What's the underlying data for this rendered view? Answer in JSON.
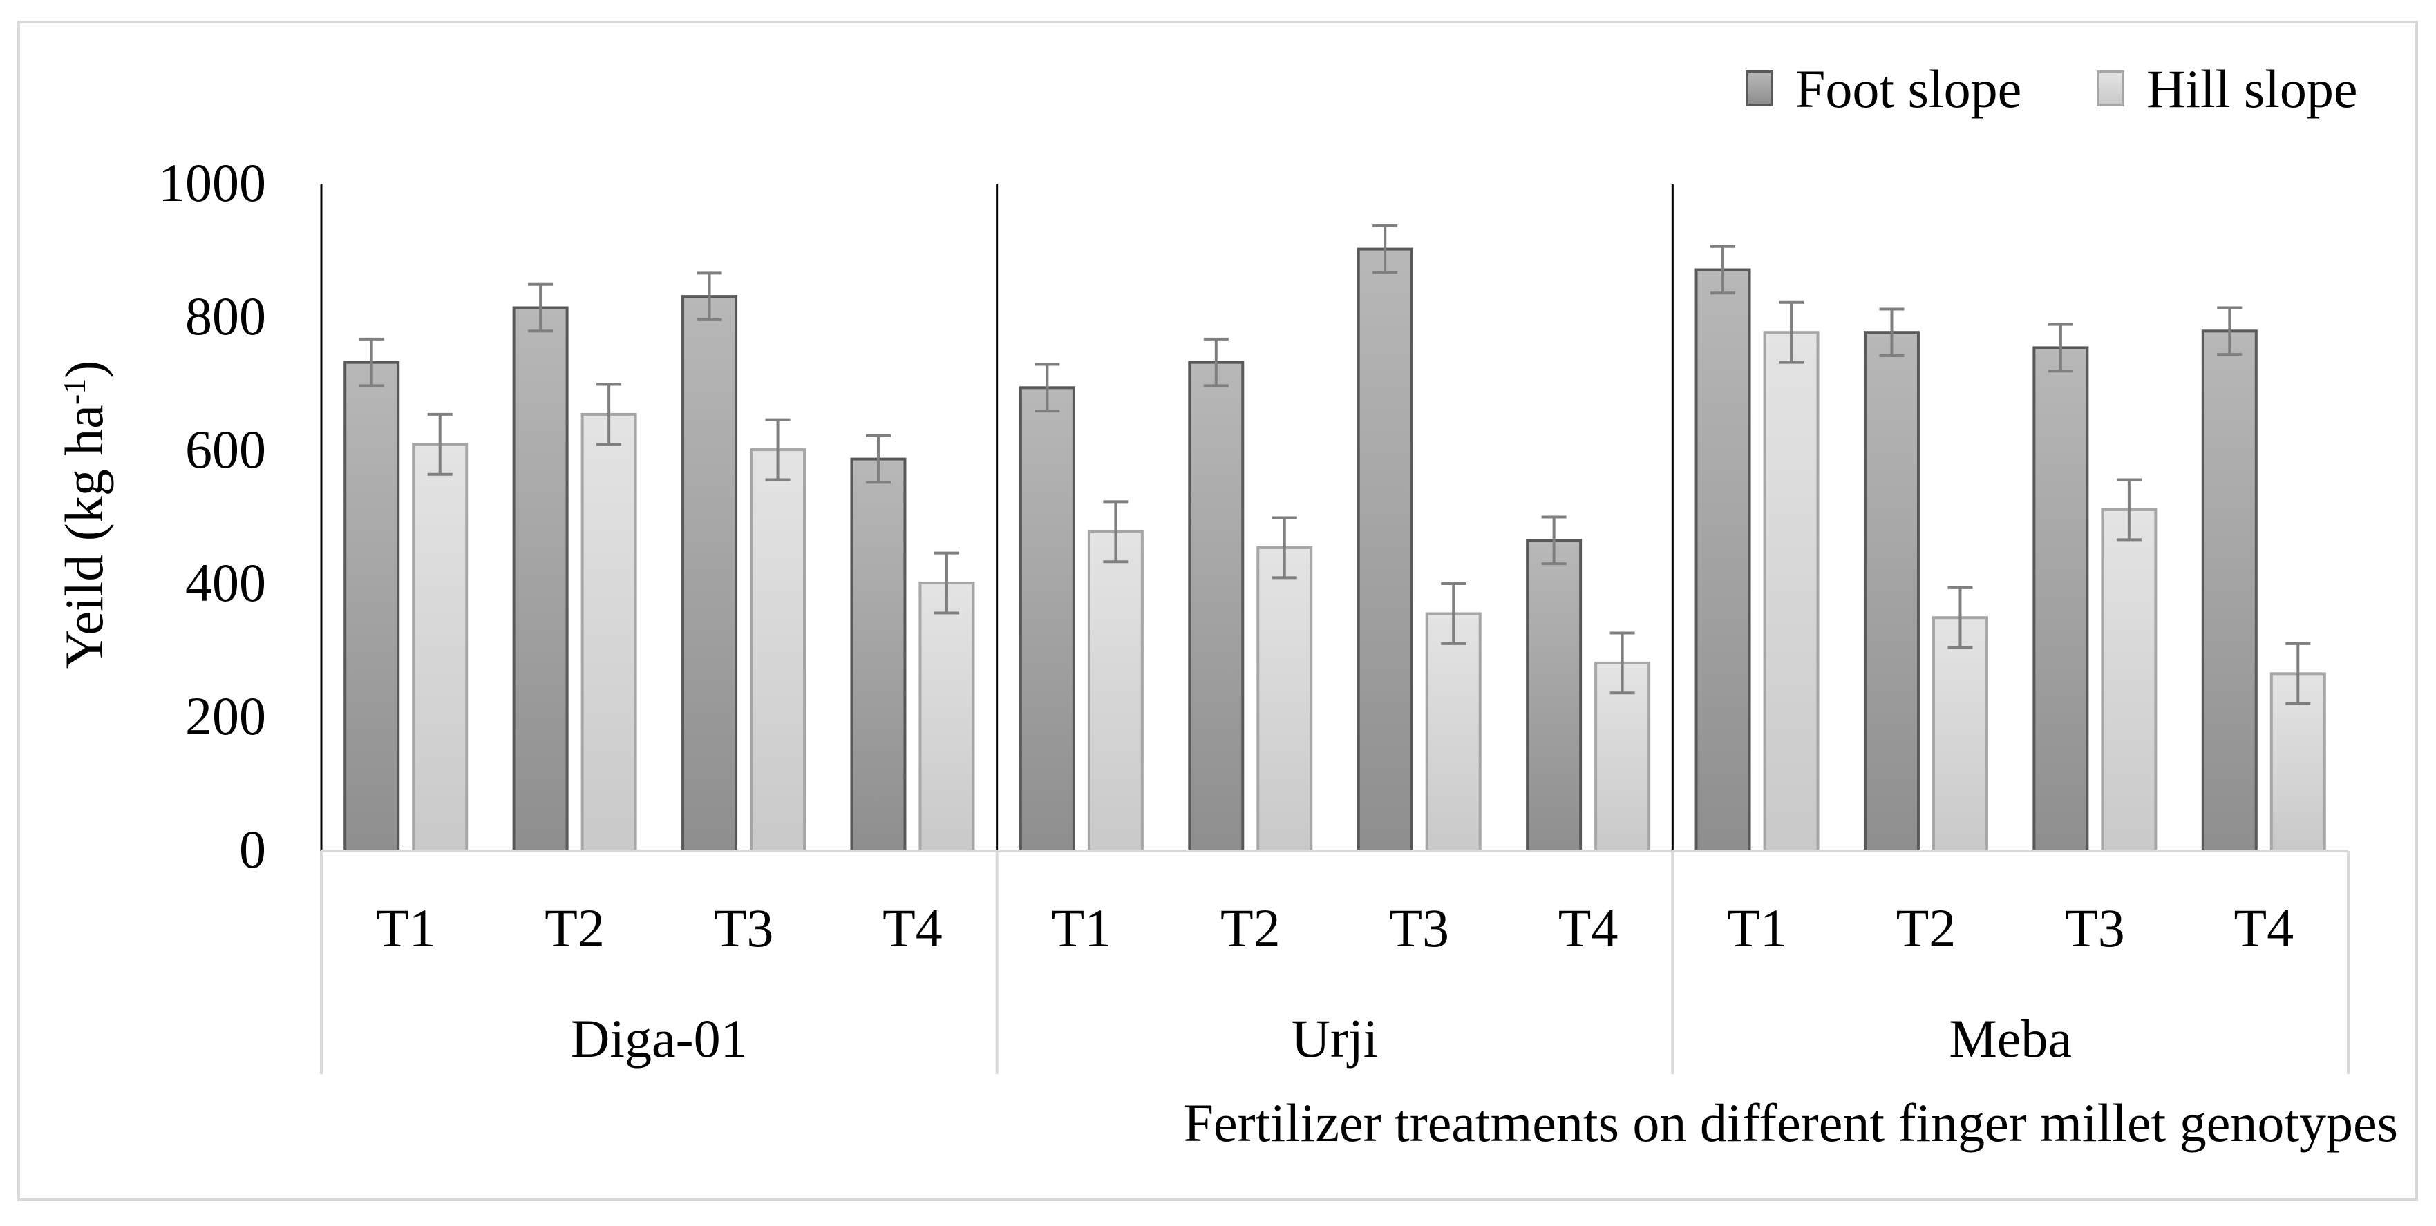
{
  "chart_data": {
    "type": "bar",
    "title": "",
    "ylabel_main": "Yeild (kg ha",
    "ylabel_sup": "-1",
    "ylabel_close": ")",
    "xlabel": "Fertilizer treatments on different finger millet genotypes",
    "ylim": [
      0,
      1000
    ],
    "yticks": [
      0,
      200,
      400,
      600,
      800,
      1000
    ],
    "ytick_labels": [
      "0",
      "200",
      "400",
      "600",
      "800",
      "1000"
    ],
    "grid": false,
    "legend_position": "top-right",
    "groups": [
      {
        "name": "Diga-01",
        "categories": [
          "T1",
          "T2",
          "T3",
          "T4"
        ]
      },
      {
        "name": "Urji",
        "categories": [
          "T1",
          "T2",
          "T3",
          "T4"
        ]
      },
      {
        "name": "Meba",
        "categories": [
          "T1",
          "T2",
          "T3",
          "T4"
        ]
      }
    ],
    "series": [
      {
        "name": "Foot slope",
        "color_top": "#b8b8b8",
        "color_bottom": "#8e8e8e",
        "stroke": "#595959",
        "values": [
          733,
          815,
          832,
          588,
          695,
          733,
          903,
          466,
          872,
          778,
          755,
          780
        ],
        "errors": [
          35,
          35,
          35,
          35,
          35,
          35,
          35,
          35,
          35,
          35,
          35,
          35
        ]
      },
      {
        "name": "Hill slope",
        "color_top": "#e4e4e4",
        "color_bottom": "#c9c9c9",
        "stroke": "#a6a6a6",
        "values": [
          610,
          655,
          602,
          402,
          479,
          455,
          356,
          282,
          778,
          350,
          512,
          266
        ],
        "errors": [
          45,
          45,
          45,
          45,
          45,
          45,
          45,
          45,
          45,
          45,
          45,
          45
        ]
      }
    ]
  }
}
